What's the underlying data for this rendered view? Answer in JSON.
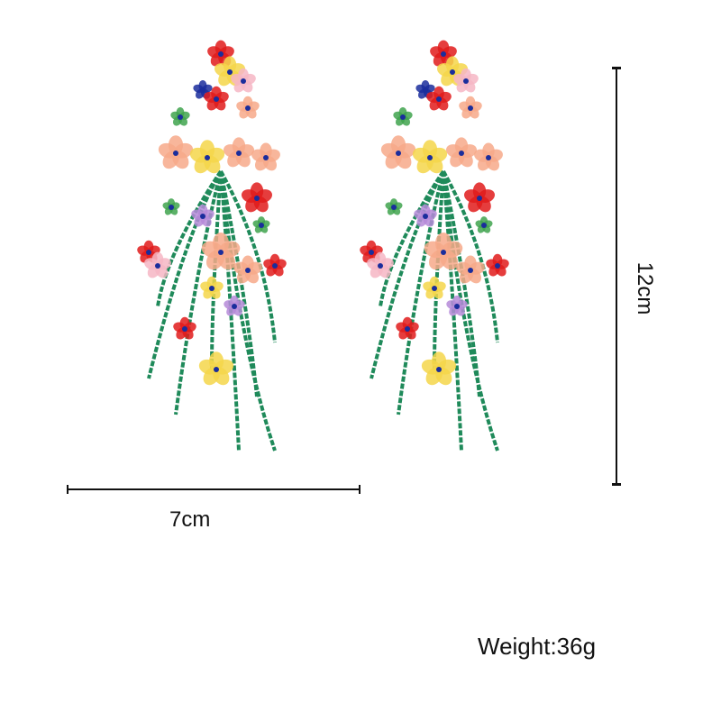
{
  "product": {
    "width_label": "7cm",
    "height_label": "12cm",
    "weight_label": "Weight:36g"
  },
  "colors": {
    "stem": "#1f8a5a",
    "red": "#e01b1b",
    "peach": "#f7a98a",
    "yellow": "#f5d64a",
    "blue": "#1a2d9c",
    "purple": "#b58ad8",
    "leaf": "#3fa34d",
    "pink": "#f6b6c4"
  }
}
